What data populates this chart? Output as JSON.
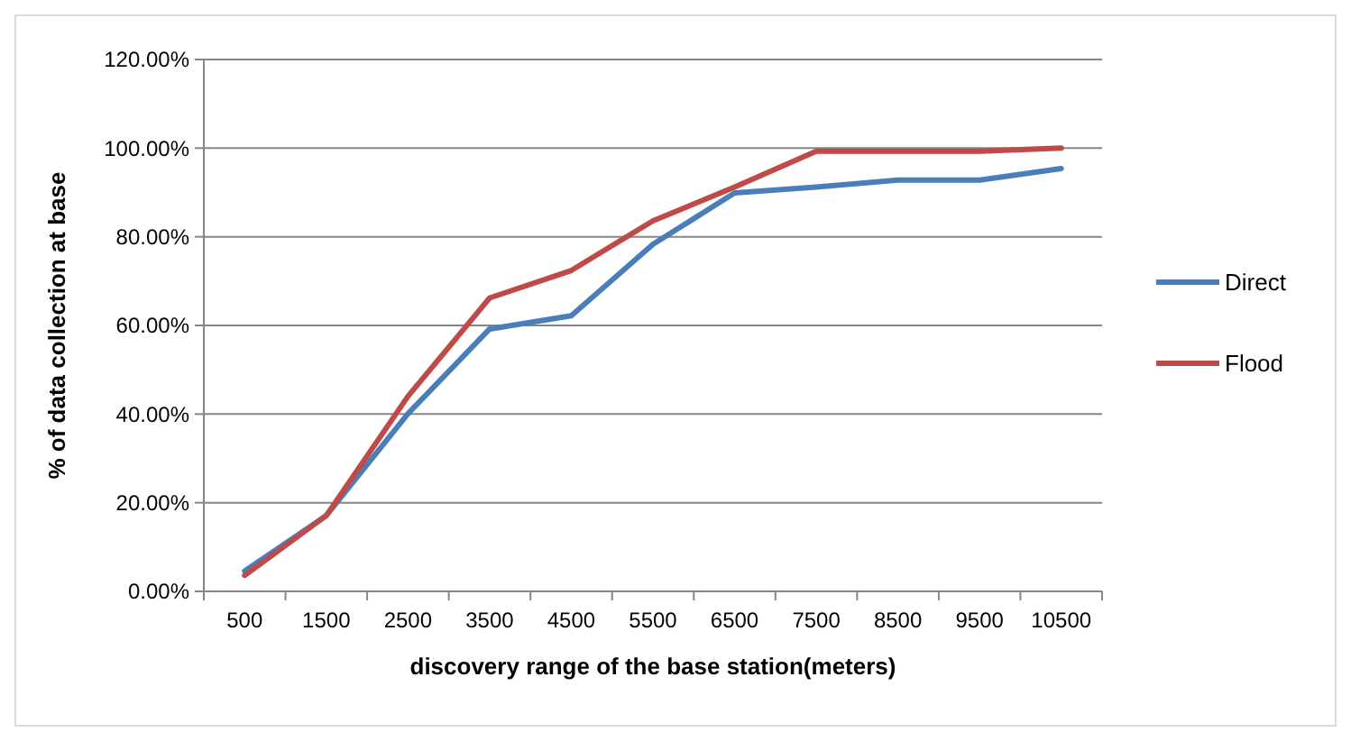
{
  "chart_data": {
    "type": "line",
    "xlabel": "discovery range of the base station(meters)",
    "ylabel": "% of data collection at base",
    "categories": [
      "500",
      "1500",
      "2500",
      "3500",
      "4500",
      "5500",
      "6500",
      "7500",
      "8500",
      "9500",
      "10500"
    ],
    "series": [
      {
        "name": "Direct",
        "color": "#4a7ebb",
        "values": [
          4.6,
          17.1,
          40.1,
          59.2,
          62.2,
          78.3,
          89.9,
          91.2,
          92.8,
          92.8,
          95.4
        ]
      },
      {
        "name": "Flood",
        "color": "#be4b48",
        "values": [
          3.6,
          17.1,
          44,
          66.2,
          72.4,
          83.6,
          91.2,
          99.3,
          99.3,
          99.3,
          100
        ]
      }
    ],
    "ylim": [
      0,
      120
    ],
    "yticks": [
      {
        "value": 0,
        "label": "0.00%"
      },
      {
        "value": 20,
        "label": "20.00%"
      },
      {
        "value": 40,
        "label": "40.00%"
      },
      {
        "value": 60,
        "label": "60.00%"
      },
      {
        "value": 80,
        "label": "80.00%"
      },
      {
        "value": 100,
        "label": "100.00%"
      },
      {
        "value": 120,
        "label": "120.00%"
      }
    ],
    "grid": "y",
    "legend": "right",
    "marker": "none",
    "line_style": "solid"
  }
}
